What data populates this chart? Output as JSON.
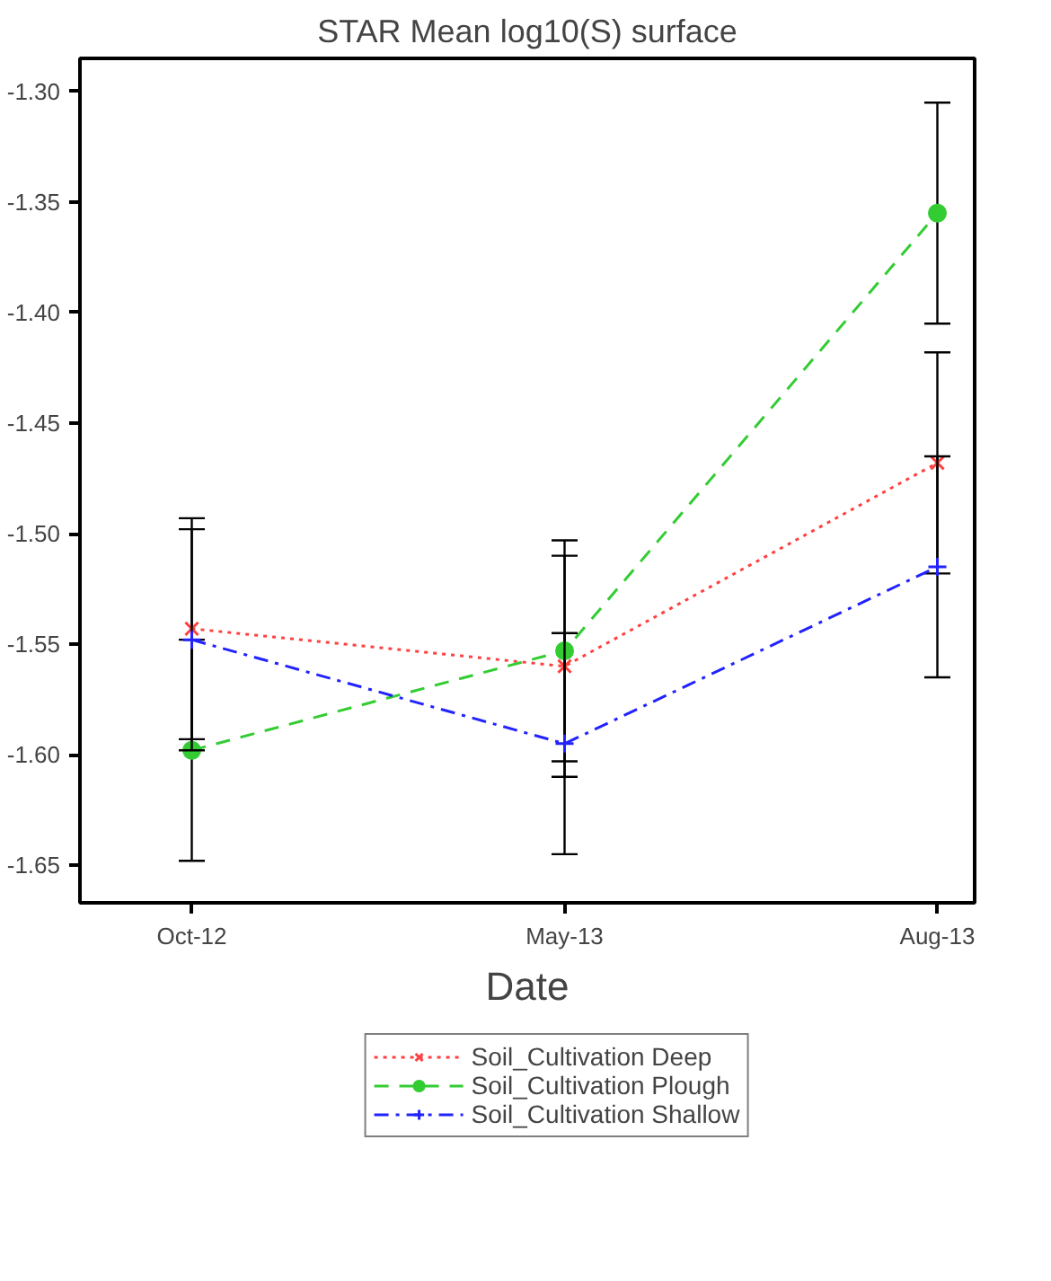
{
  "chart_data": {
    "type": "line",
    "title": "STAR Mean log10(S) surface",
    "xlabel": "Date",
    "categories": [
      "Oct-12",
      "May-13",
      "Aug-13"
    ],
    "ylim": [
      -1.667,
      -1.285
    ],
    "yticks": [
      {
        "value": -1.65,
        "label": "-1.65"
      },
      {
        "value": -1.6,
        "label": "-1.60"
      },
      {
        "value": -1.55,
        "label": "-1.55"
      },
      {
        "value": -1.5,
        "label": "-1.50"
      },
      {
        "value": -1.45,
        "label": "-1.45"
      },
      {
        "value": -1.4,
        "label": "-1.40"
      },
      {
        "value": -1.35,
        "label": "-1.35"
      },
      {
        "value": -1.3,
        "label": "-1.30"
      }
    ],
    "grid": false,
    "legend": "bottom",
    "series": [
      {
        "name": "Soil_Cultivation Deep",
        "color": "#ff4040",
        "values": [
          -1.543,
          -1.56,
          -1.468
        ],
        "errors": [
          0.05,
          0.05,
          0.05
        ],
        "marker": "x",
        "line_style": "dotted"
      },
      {
        "name": "Soil_Cultivation Plough",
        "color": "#33cc33",
        "values": [
          -1.598,
          -1.553,
          -1.355
        ],
        "errors": [
          0.05,
          0.05,
          0.05
        ],
        "marker": "circle",
        "line_style": "dashed"
      },
      {
        "name": "Soil_Cultivation Shallow",
        "color": "#2222ff",
        "values": [
          -1.548,
          -1.595,
          -1.515
        ],
        "errors": [
          0.05,
          0.05,
          0.05
        ],
        "marker": "cross",
        "line_style": "dashdot"
      }
    ]
  }
}
